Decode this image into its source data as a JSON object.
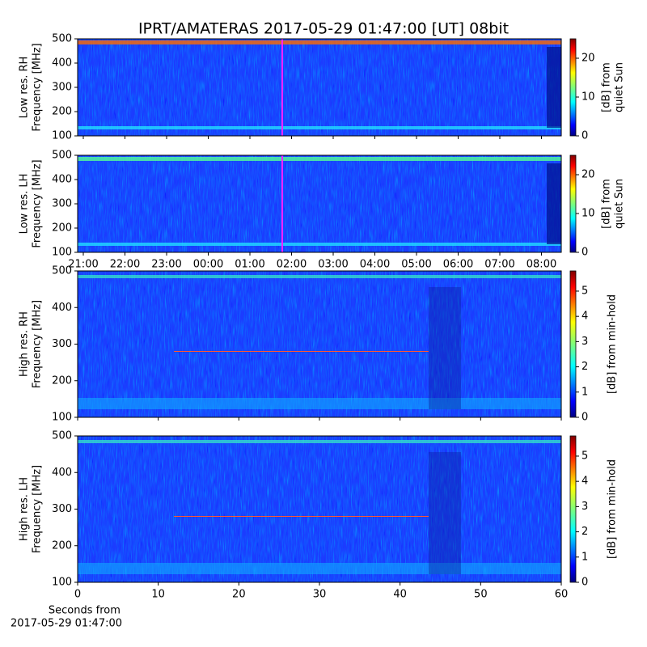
{
  "title": "IPRT/AMATERAS 2017-05-29 01:47:00 [UT]   08bit",
  "chart_data": [
    {
      "type": "heatmap",
      "ylabel": [
        "Low res. RH",
        "Frequency [MHz]"
      ],
      "ylim": [
        100,
        500
      ],
      "yticks": [
        100,
        200,
        300,
        400,
        500
      ],
      "colorbar": {
        "label": [
          "[dB] from",
          "quiet Sun"
        ],
        "lim": [
          0,
          25
        ],
        "ticks": [
          0,
          10,
          20
        ]
      }
    },
    {
      "type": "heatmap",
      "ylabel": [
        "Low res. LH",
        "Frequency [MHz]"
      ],
      "ylim": [
        100,
        500
      ],
      "yticks": [
        100,
        200,
        300,
        400,
        500
      ],
      "colorbar": {
        "label": [
          "[dB] from",
          "quiet Sun"
        ],
        "lim": [
          0,
          25
        ],
        "ticks": [
          0,
          10,
          20
        ]
      },
      "xtick_labels": [
        "21:00",
        "22:00",
        "23:00",
        "00:00",
        "01:00",
        "02:00",
        "03:00",
        "04:00",
        "05:00",
        "06:00",
        "07:00",
        "08:00"
      ]
    },
    {
      "type": "heatmap",
      "ylabel": [
        "High res. RH",
        "Frequency [MHz]"
      ],
      "ylim": [
        100,
        500
      ],
      "yticks": [
        100,
        200,
        300,
        400,
        500
      ],
      "colorbar": {
        "label": [
          "[dB] from min-hold"
        ],
        "lim": [
          0,
          5.8
        ],
        "ticks": [
          0,
          1,
          2,
          3,
          4,
          5
        ]
      }
    },
    {
      "type": "heatmap",
      "ylabel": [
        "High res. LH",
        "Frequency [MHz]"
      ],
      "ylim": [
        100,
        500
      ],
      "yticks": [
        100,
        200,
        300,
        400,
        500
      ],
      "colorbar": {
        "label": [
          "[dB] from min-hold"
        ],
        "lim": [
          0,
          5.8
        ],
        "ticks": [
          0,
          1,
          2,
          3,
          4,
          5
        ]
      },
      "xlim": [
        0,
        60
      ],
      "xticks": [
        0,
        10,
        20,
        30,
        40,
        50,
        60
      ],
      "xlabel": [
        "Seconds from",
        "2017-05-29 01:47:00"
      ]
    }
  ]
}
